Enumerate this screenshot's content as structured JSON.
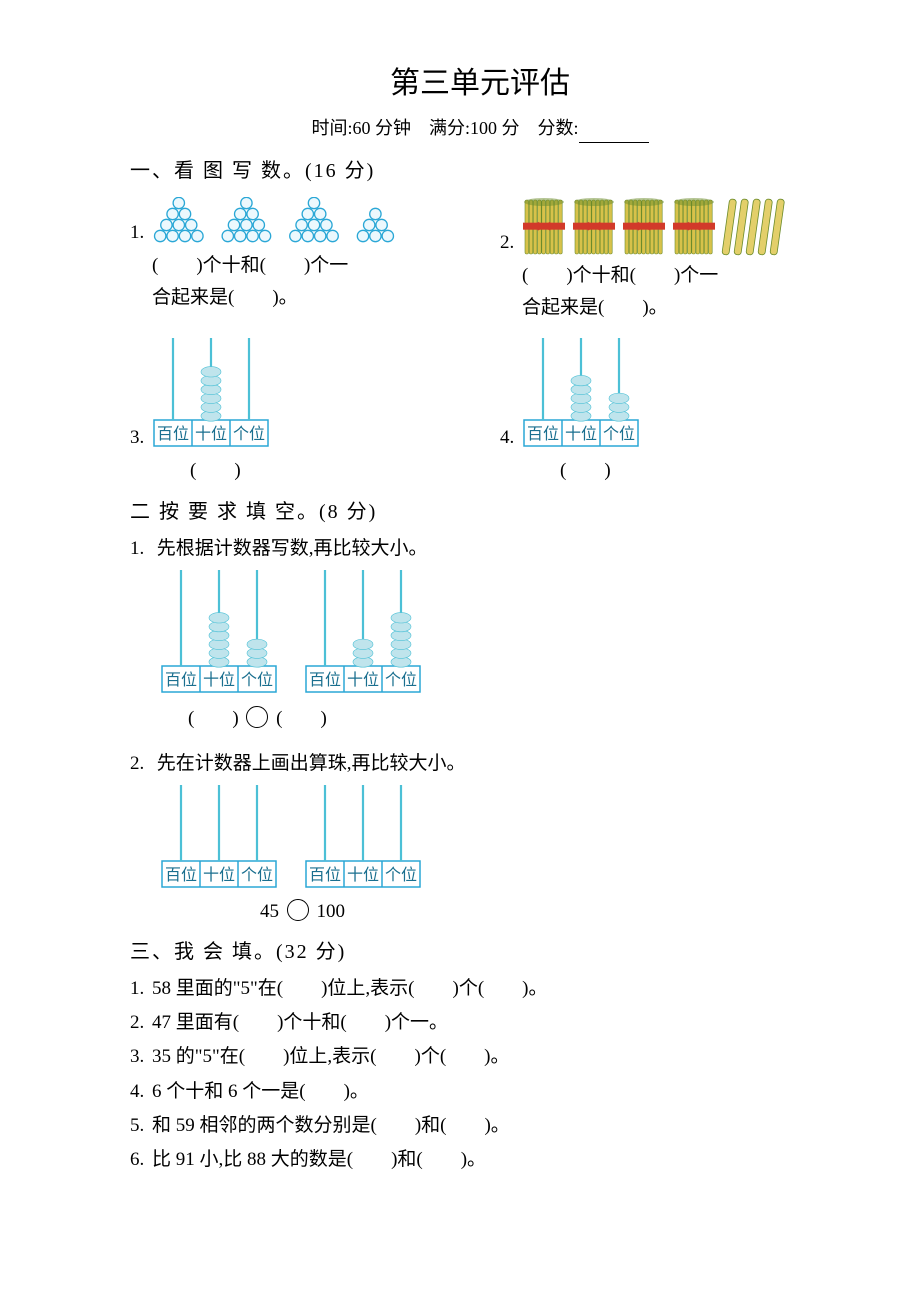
{
  "title": "第三单元评估",
  "meta": {
    "time_label": "时间:60 分钟",
    "full_label": "满分:100 分",
    "score_label": "分数:"
  },
  "section1": {
    "heading": "一、看 图 写 数。(16 分)",
    "q1": {
      "num": "1.",
      "pyramids": {
        "groups": [
          10,
          10,
          10,
          6
        ],
        "ball_fill": "#ecf8fd",
        "ball_stroke": "#2aa7d6"
      },
      "line1_a": "(　　)个十和(　　)个一",
      "line2": "合起来是(　　)。"
    },
    "q2": {
      "num": "2.",
      "bundles": {
        "bundle_count": 4,
        "loose_count": 5,
        "bundle_fill": "#d7c24a",
        "bundle_dark": "#6b8b2a",
        "band_color": "#d23a2a",
        "stick_fill": "#e3cf6a"
      },
      "line1_a": "(　　)个十和(　　)个一",
      "line2": "合起来是(　　)。"
    },
    "q3": {
      "num": "3.",
      "abacus": {
        "labels": [
          "百位",
          "十位",
          "个位"
        ],
        "beads": [
          0,
          6,
          0
        ],
        "rod_color": "#4cc0d6",
        "bead_color": "#bfe4ec",
        "box_stroke": "#2aa7d6"
      },
      "answer": "(　　)"
    },
    "q4": {
      "num": "4.",
      "abacus": {
        "labels": [
          "百位",
          "十位",
          "个位"
        ],
        "beads": [
          0,
          5,
          3
        ],
        "rod_color": "#4cc0d6",
        "bead_color": "#bfe4ec",
        "box_stroke": "#2aa7d6"
      },
      "answer": "(　　)"
    }
  },
  "section2": {
    "heading": "二 按 要 求 填 空。(8 分)",
    "q1": {
      "num": "1.",
      "text": "先根据计数器写数,再比较大小。",
      "abacus_a": {
        "labels": [
          "百位",
          "十位",
          "个位"
        ],
        "beads": [
          0,
          6,
          3
        ]
      },
      "abacus_b": {
        "labels": [
          "百位",
          "十位",
          "个位"
        ],
        "beads": [
          0,
          3,
          6
        ]
      },
      "rod_color": "#4cc0d6",
      "bead_color": "#bfe4ec",
      "box_stroke": "#2aa7d6",
      "ans_left": "(　　)",
      "ans_right": "(　　)"
    },
    "q2": {
      "num": "2.",
      "text": "先在计数器上画出算珠,再比较大小。",
      "abacus_a": {
        "labels": [
          "百位",
          "十位",
          "个位"
        ],
        "beads": [
          0,
          0,
          0
        ]
      },
      "abacus_b": {
        "labels": [
          "百位",
          "十位",
          "个位"
        ],
        "beads": [
          0,
          0,
          0
        ]
      },
      "rod_color": "#4cc0d6",
      "bead_color": "#bfe4ec",
      "box_stroke": "#2aa7d6",
      "left_num": "45",
      "right_num": "100"
    }
  },
  "section3": {
    "heading": "三、我 会 填。(32 分)",
    "items": [
      {
        "num": "1.",
        "text": "58 里面的\"5\"在(　　)位上,表示(　　)个(　　)。"
      },
      {
        "num": "2.",
        "text": "47 里面有(　　)个十和(　　)个一。"
      },
      {
        "num": "3.",
        "text": "35 的\"5\"在(　　)位上,表示(　　)个(　　)。"
      },
      {
        "num": "4.",
        "text": "6 个十和 6 个一是(　　)。"
      },
      {
        "num": "5.",
        "text": "和 59 相邻的两个数分别是(　　)和(　　)。"
      },
      {
        "num": "6.",
        "text": "比 91 小,比 88 大的数是(　　)和(　　)。"
      }
    ]
  },
  "style": {
    "rod_color": "#4cc0d6",
    "bead_color": "#bfe4ec",
    "box_stroke": "#2aa7d6",
    "label_font": 16
  }
}
